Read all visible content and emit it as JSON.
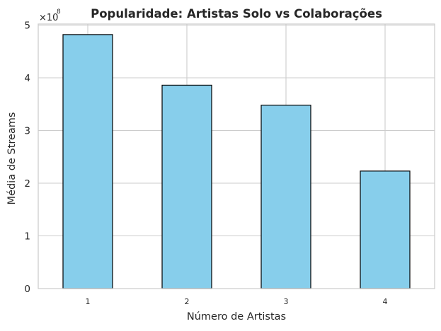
{
  "chart_data": {
    "type": "bar",
    "title": "Popularidade: Artistas Solo vs Colaborações",
    "xlabel": "Número de Artistas",
    "ylabel": "Média de Streams",
    "categories": [
      "1",
      "2",
      "3",
      "4"
    ],
    "values": [
      482000000,
      386000000,
      348000000,
      223000000
    ],
    "ylim": [
      0,
      502000000
    ],
    "yticks": [
      0,
      100000000,
      200000000,
      300000000,
      400000000,
      500000000
    ],
    "ytick_labels": [
      "0",
      "1",
      "2",
      "3",
      "4",
      "5"
    ],
    "offset_text": {
      "base": "×10",
      "exponent": "8"
    },
    "bar_color": "#87ceeb",
    "bar_edge_color": "#000000",
    "grid": true,
    "legend": "none"
  }
}
